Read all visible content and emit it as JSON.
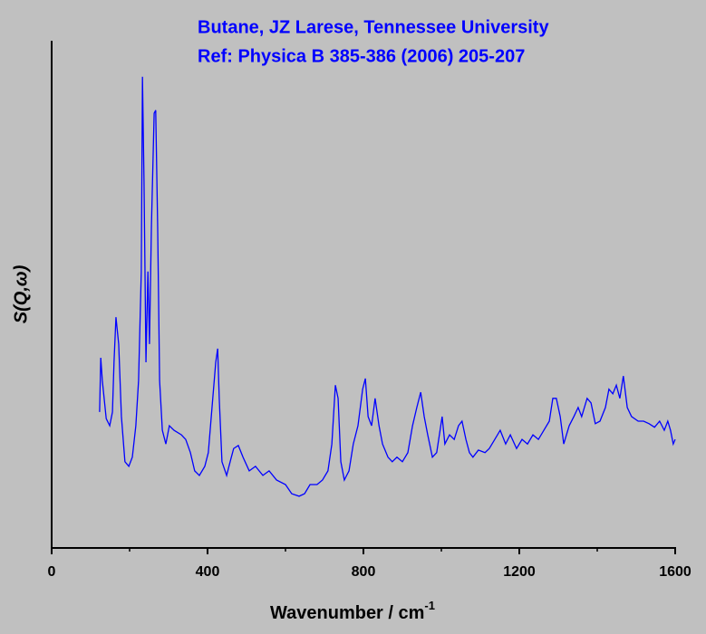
{
  "chart_data": {
    "type": "line",
    "annotations": [
      "Butane, JZ Larese, Tennessee University",
      "Ref: Physica B 385-386 (2006) 205-207"
    ],
    "annotation_color": "#0000ff",
    "xlabel": "Wavenumber / cm",
    "xlabel_superscript": "-1",
    "ylabel": "S(Q,ω)",
    "xlim": [
      0,
      1600
    ],
    "ylim": [
      0,
      100
    ],
    "xticks": [
      0,
      400,
      800,
      1200,
      1600
    ],
    "xminor_ticks": [
      200,
      600,
      1000,
      1400
    ],
    "grid": false,
    "series": [
      {
        "color": "#0000ff",
        "x": [
          123,
          126,
          130,
          140,
          149,
          156,
          160,
          165,
          172,
          179,
          188,
          198,
          207,
          216,
          223,
          230,
          233,
          237,
          242,
          247,
          251,
          256,
          263,
          267,
          272,
          277,
          284,
          293,
          302,
          314,
          333,
          344,
          356,
          367,
          379,
          393,
          402,
          421,
          426,
          430,
          437,
          449,
          458,
          467,
          479,
          491,
          507,
          523,
          542,
          558,
          577,
          600,
          616,
          635,
          649,
          663,
          681,
          695,
          709,
          719,
          728,
          735,
          742,
          751,
          763,
          774,
          786,
          798,
          805,
          812,
          821,
          830,
          840,
          849,
          863,
          874,
          886,
          900,
          914,
          926,
          937,
          947,
          956,
          965,
          977,
          988,
          1002,
          1009,
          1021,
          1033,
          1044,
          1053,
          1063,
          1072,
          1081,
          1095,
          1112,
          1123,
          1137,
          1151,
          1165,
          1177,
          1193,
          1207,
          1221,
          1235,
          1249,
          1263,
          1277,
          1286,
          1295,
          1305,
          1314,
          1328,
          1340,
          1351,
          1360,
          1374,
          1384,
          1395,
          1407,
          1421,
          1430,
          1440,
          1449,
          1458,
          1467,
          1477,
          1488,
          1505,
          1519,
          1533,
          1547,
          1560,
          1572,
          1581,
          1588,
          1595,
          1600
        ],
        "values": [
          26.8,
          37.5,
          33.0,
          25.5,
          24.1,
          26.8,
          36.6,
          45.5,
          40.2,
          25.9,
          17.0,
          16.1,
          17.9,
          24.1,
          33.0,
          54.5,
          92.9,
          72.3,
          36.6,
          54.5,
          40.2,
          63.4,
          85.7,
          86.3,
          63.4,
          33.0,
          23.2,
          20.5,
          24.1,
          23.2,
          22.3,
          21.4,
          18.8,
          15.2,
          14.3,
          16.1,
          18.8,
          36.6,
          39.3,
          29.5,
          17.0,
          14.3,
          17.0,
          19.6,
          20.2,
          17.9,
          15.2,
          16.1,
          14.3,
          15.2,
          13.4,
          12.5,
          10.7,
          10.2,
          10.7,
          12.5,
          12.5,
          13.4,
          15.2,
          20.5,
          32.1,
          29.5,
          17.0,
          13.4,
          15.2,
          20.5,
          24.1,
          31.3,
          33.4,
          25.9,
          24.1,
          29.5,
          24.1,
          20.5,
          17.9,
          17.0,
          17.9,
          17.0,
          18.8,
          24.1,
          27.7,
          30.7,
          25.9,
          22.3,
          17.9,
          18.8,
          25.9,
          20.5,
          22.3,
          21.4,
          24.1,
          25.0,
          21.4,
          18.8,
          17.9,
          19.3,
          18.8,
          19.6,
          21.4,
          23.2,
          20.5,
          22.3,
          19.6,
          21.4,
          20.5,
          22.3,
          21.4,
          23.2,
          25.0,
          29.5,
          29.5,
          25.9,
          20.5,
          24.1,
          25.9,
          27.7,
          25.9,
          29.5,
          28.6,
          24.5,
          25.0,
          27.7,
          31.3,
          30.4,
          32.1,
          29.5,
          33.9,
          27.7,
          25.9,
          25.0,
          25.0,
          24.5,
          23.8,
          25.0,
          23.2,
          25.0,
          23.2,
          20.5,
          21.4
        ]
      }
    ]
  }
}
